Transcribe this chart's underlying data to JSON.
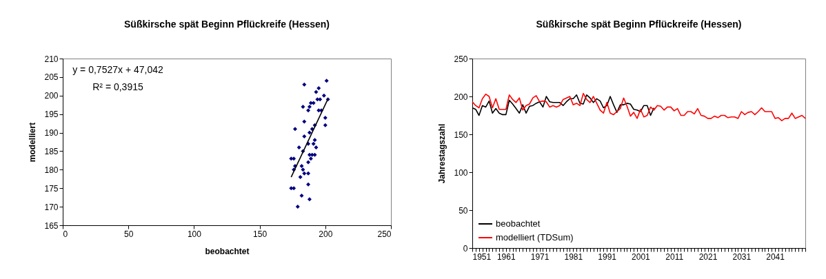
{
  "chart_data": [
    {
      "type": "scatter",
      "title": "Süßkirsche spät Beginn Pflückreife (Hessen)",
      "xlabel": "beobachtet",
      "ylabel": "modelliert",
      "xlim": [
        0,
        250
      ],
      "xticks": [
        0,
        50,
        100,
        150,
        200,
        250
      ],
      "ylim": [
        165,
        210
      ],
      "yticks": [
        165,
        170,
        175,
        180,
        185,
        190,
        195,
        200,
        205,
        210
      ],
      "marker": "diamond",
      "annotations": [
        "y = 0,7527x + 47,042",
        "R² = 0,3915"
      ],
      "series": [
        {
          "color": "#000080",
          "x": [
            201,
            184,
            195,
            193,
            199,
            194,
            196,
            202,
            189,
            191,
            183,
            188,
            187,
            195,
            197,
            200,
            184,
            200,
            192,
            177,
            190,
            188,
            184,
            192,
            187,
            191,
            193,
            180,
            183,
            188,
            190,
            192,
            189,
            174,
            176,
            187,
            177,
            182,
            176,
            183,
            184,
            187,
            181,
            187,
            174,
            176,
            182,
            188,
            179
          ],
          "values": [
            204,
            203,
            202,
            201,
            200,
            199,
            199,
            199,
            198,
            198,
            197,
            197,
            196,
            196,
            196,
            194,
            193,
            192,
            192,
            191,
            191,
            190,
            189,
            188,
            187,
            187,
            186,
            186,
            185,
            184,
            184,
            184,
            183,
            183,
            183,
            182,
            181,
            181,
            180,
            180,
            179,
            179,
            178,
            176,
            175,
            175,
            173,
            172,
            170
          ]
        },
        {
          "type": "line",
          "marker": "none",
          "color": "#000000",
          "x": [
            174,
            202
          ],
          "values": [
            178.0,
            199.1
          ]
        }
      ]
    },
    {
      "type": "line",
      "title": "Süßkirsche spät Beginn Pflückreife (Hessen)",
      "ylabel": "Jahrestagszahl",
      "xlim": [
        1951,
        2050
      ],
      "ylim": [
        0,
        250
      ],
      "yticks": [
        0,
        50,
        100,
        150,
        200,
        250
      ],
      "legend": "bottom left",
      "xticks": [
        1951,
        {
          "value": 1952,
          "label": null
        },
        {
          "value": 1953,
          "label": null
        },
        {
          "value": 1954,
          "label": null
        },
        {
          "value": 1955,
          "label": null
        },
        {
          "value": 1956,
          "label": null
        },
        {
          "value": 1957,
          "label": null
        },
        {
          "value": 1958,
          "label": null
        },
        {
          "value": 1959,
          "label": null
        },
        {
          "value": 1960,
          "label": null
        },
        1961,
        {
          "value": 1962,
          "label": null
        },
        {
          "value": 1963,
          "label": null
        },
        {
          "value": 1964,
          "label": null
        },
        {
          "value": 1965,
          "label": null
        },
        {
          "value": 1966,
          "label": null
        },
        {
          "value": 1967,
          "label": null
        },
        {
          "value": 1968,
          "label": null
        },
        {
          "value": 1969,
          "label": null
        },
        {
          "value": 1970,
          "label": null
        },
        1971,
        {
          "value": 1972,
          "label": null
        },
        {
          "value": 1973,
          "label": null
        },
        {
          "value": 1974,
          "label": null
        },
        {
          "value": 1975,
          "label": null
        },
        {
          "value": 1976,
          "label": null
        },
        {
          "value": 1977,
          "label": null
        },
        {
          "value": 1978,
          "label": null
        },
        {
          "value": 1979,
          "label": null
        },
        {
          "value": 1980,
          "label": null
        },
        1981,
        {
          "value": 1982,
          "label": null
        },
        {
          "value": 1983,
          "label": null
        },
        {
          "value": 1984,
          "label": null
        },
        {
          "value": 1985,
          "label": null
        },
        {
          "value": 1986,
          "label": null
        },
        {
          "value": 1987,
          "label": null
        },
        {
          "value": 1988,
          "label": null
        },
        {
          "value": 1989,
          "label": null
        },
        {
          "value": 1990,
          "label": null
        },
        1991,
        {
          "value": 1992,
          "label": null
        },
        {
          "value": 1993,
          "label": null
        },
        {
          "value": 1994,
          "label": null
        },
        {
          "value": 1995,
          "label": null
        },
        {
          "value": 1996,
          "label": null
        },
        {
          "value": 1997,
          "label": null
        },
        {
          "value": 1998,
          "label": null
        },
        {
          "value": 1999,
          "label": null
        },
        {
          "value": 2000,
          "label": null
        },
        2001,
        {
          "value": 2002,
          "label": null
        },
        {
          "value": 2003,
          "label": null
        },
        {
          "value": 2004,
          "label": null
        },
        {
          "value": 2005,
          "label": null
        },
        {
          "value": 2006,
          "label": null
        },
        {
          "value": 2007,
          "label": null
        },
        {
          "value": 2008,
          "label": null
        },
        {
          "value": 2009,
          "label": null
        },
        {
          "value": 2010,
          "label": null
        },
        2011,
        {
          "value": 2012,
          "label": null
        },
        {
          "value": 2013,
          "label": null
        },
        {
          "value": 2014,
          "label": null
        },
        {
          "value": 2015,
          "label": null
        },
        {
          "value": 2016,
          "label": null
        },
        {
          "value": 2017,
          "label": null
        },
        {
          "value": 2018,
          "label": null
        },
        {
          "value": 2019,
          "label": null
        },
        {
          "value": 2020,
          "label": null
        },
        2021,
        {
          "value": 2022,
          "label": null
        },
        {
          "value": 2023,
          "label": null
        },
        {
          "value": 2024,
          "label": null
        },
        {
          "value": 2025,
          "label": null
        },
        {
          "value": 2026,
          "label": null
        },
        {
          "value": 2027,
          "label": null
        },
        {
          "value": 2028,
          "label": null
        },
        {
          "value": 2029,
          "label": null
        },
        {
          "value": 2030,
          "label": null
        },
        2031,
        {
          "value": 2032,
          "label": null
        },
        {
          "value": 2033,
          "label": null
        },
        {
          "value": 2034,
          "label": null
        },
        {
          "value": 2035,
          "label": null
        },
        {
          "value": 2036,
          "label": null
        },
        {
          "value": 2037,
          "label": null
        },
        {
          "value": 2038,
          "label": null
        },
        {
          "value": 2039,
          "label": null
        },
        {
          "value": 2040,
          "label": null
        },
        2041,
        {
          "value": 2042,
          "label": null
        },
        {
          "value": 2043,
          "label": null
        },
        {
          "value": 2044,
          "label": null
        },
        {
          "value": 2045,
          "label": null
        },
        {
          "value": 2046,
          "label": null
        },
        {
          "value": 2047,
          "label": null
        },
        {
          "value": 2048,
          "label": null
        },
        {
          "value": 2049,
          "label": null
        },
        {
          "value": 2050,
          "label": null
        }
      ],
      "series": [
        {
          "name": "beobachtet",
          "color": "#000000",
          "x": [
            1951,
            1952,
            1953,
            1954,
            1955,
            1956,
            1957,
            1958,
            1959,
            1960,
            1961,
            1962,
            1963,
            1964,
            1965,
            1966,
            1967,
            1968,
            1969,
            1970,
            1971,
            1972,
            1973,
            1974,
            1975,
            1976,
            1977,
            1978,
            1979,
            1980,
            1981,
            1982,
            1983,
            1984,
            1985,
            1986,
            1987,
            1988,
            1989,
            1990,
            1991,
            1992,
            1993,
            1994,
            1995,
            1996,
            1997,
            1998,
            1999,
            2000,
            2001,
            2002,
            2003,
            2004,
            2005
          ],
          "values": [
            185,
            183,
            175,
            188,
            186,
            194,
            178,
            184,
            178,
            176,
            176,
            195,
            190,
            184,
            178,
            189,
            178,
            187,
            188,
            191,
            193,
            186,
            200,
            193,
            192,
            192,
            192,
            188,
            193,
            197,
            197,
            202,
            191,
            190,
            202,
            198,
            192,
            197,
            194,
            185,
            188,
            200,
            189,
            179,
            189,
            189,
            191,
            190,
            183,
            182,
            180,
            188,
            188,
            175,
            185
          ]
        },
        {
          "name": "modelliert (TDSum)",
          "color": "#ff0000",
          "x": [
            1951,
            1952,
            1953,
            1954,
            1955,
            1956,
            1957,
            1958,
            1959,
            1960,
            1961,
            1962,
            1963,
            1964,
            1965,
            1966,
            1967,
            1968,
            1969,
            1970,
            1971,
            1972,
            1973,
            1974,
            1975,
            1976,
            1977,
            1978,
            1979,
            1980,
            1981,
            1982,
            1983,
            1984,
            1985,
            1986,
            1987,
            1988,
            1989,
            1990,
            1991,
            1992,
            1993,
            1994,
            1995,
            1996,
            1997,
            1998,
            1999,
            2000,
            2001,
            2002,
            2003,
            2004,
            2005,
            2006,
            2007,
            2008,
            2009,
            2010,
            2011,
            2012,
            2013,
            2014,
            2015,
            2016,
            2017,
            2018,
            2019,
            2020,
            2021,
            2022,
            2023,
            2024,
            2025,
            2026,
            2027,
            2028,
            2029,
            2030,
            2031,
            2032,
            2033,
            2034,
            2035,
            2036,
            2037,
            2038,
            2039,
            2040,
            2041,
            2042,
            2043,
            2044,
            2045,
            2046,
            2047,
            2048,
            2049,
            2050
          ],
          "values": [
            193,
            188,
            185,
            197,
            203,
            200,
            185,
            197,
            183,
            183,
            183,
            202,
            196,
            192,
            198,
            182,
            188,
            190,
            198,
            201,
            193,
            194,
            193,
            186,
            188,
            186,
            188,
            196,
            198,
            200,
            189,
            191,
            188,
            204,
            196,
            192,
            200,
            191,
            182,
            178,
            192,
            178,
            176,
            180,
            184,
            198,
            187,
            174,
            179,
            171,
            183,
            173,
            175,
            186,
            182,
            188,
            187,
            182,
            186,
            186,
            181,
            184,
            175,
            175,
            180,
            180,
            177,
            184,
            175,
            174,
            171,
            171,
            174,
            172,
            175,
            175,
            172,
            173,
            173,
            171,
            180,
            176,
            179,
            180,
            176,
            180,
            185,
            180,
            180,
            180,
            171,
            172,
            168,
            171,
            171,
            178,
            171,
            173,
            175,
            171
          ]
        }
      ]
    }
  ]
}
